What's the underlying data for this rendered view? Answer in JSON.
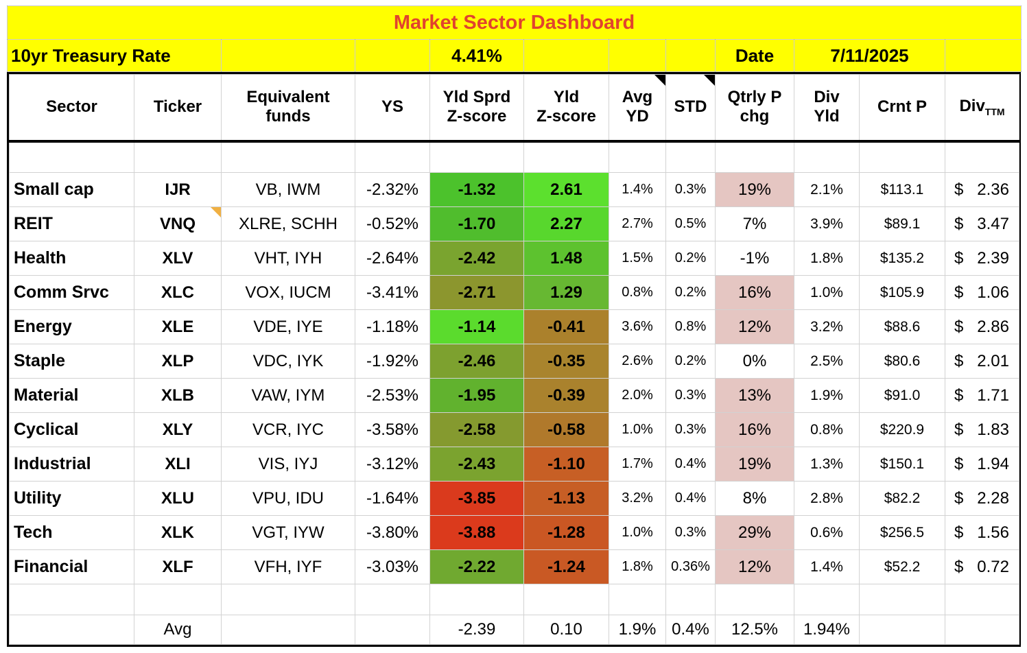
{
  "title": "Market Sector Dashboard",
  "topbar": {
    "treasury_label": "10yr Treasury Rate",
    "treasury_rate": "4.41%",
    "date_label": "Date",
    "date_value": "7/11/2025"
  },
  "header": {
    "sector": "Sector",
    "ticker": "Ticker",
    "funds": "Equivalent\nfunds",
    "ys": "YS",
    "yld_sprd_z": "Yld Sprd\nZ-score",
    "yld_z": "Yld\nZ-score",
    "avg_yd": "Avg\nYD",
    "std": "STD",
    "qtrly": "Qtrly P\nchg",
    "div_yld": "Div\nYld",
    "crnt_p": "Crnt P",
    "div_ttm_main": "Div",
    "div_ttm_sub": "TTM"
  },
  "div_ttm_sign": "$",
  "colors": {
    "band_yellow": "#ffff00",
    "title_text": "#e1432e",
    "pink": "#e5c6c2",
    "note_orange": "#f0b042",
    "grid_line": "#d2d2d2",
    "border_black": "#000000"
  },
  "rows": [
    {
      "sector": "Small cap",
      "ticker": "IJR",
      "funds": "VB, IWM",
      "ys": "-2.32%",
      "ys_z": "-1.32",
      "ys_z_color": "#4cc22c",
      "yld_z": "2.61",
      "yld_z_color": "#5ce02e",
      "avg_yd": "1.4%",
      "std": "0.3%",
      "qtrly": "19%",
      "qtrly_pink": true,
      "div_yld": "2.1%",
      "crnt_p": "$113.1",
      "div_ttm": "2.36",
      "note": false
    },
    {
      "sector": "REIT",
      "ticker": "VNQ",
      "funds": "XLRE, SCHH",
      "ys": "-0.52%",
      "ys_z": "-1.70",
      "ys_z_color": "#50bd2d",
      "yld_z": "2.27",
      "yld_z_color": "#58d72d",
      "avg_yd": "2.7%",
      "std": "0.5%",
      "qtrly": "7%",
      "qtrly_pink": false,
      "div_yld": "3.9%",
      "crnt_p": "$89.1",
      "div_ttm": "3.47",
      "note": true
    },
    {
      "sector": "Health",
      "ticker": "XLV",
      "funds": "VHT, IYH",
      "ys": "-2.64%",
      "ys_z": "-2.42",
      "ys_z_color": "#7aa42f",
      "yld_z": "1.48",
      "yld_z_color": "#5dc22f",
      "avg_yd": "1.5%",
      "std": "0.2%",
      "qtrly": "-1%",
      "qtrly_pink": false,
      "div_yld": "1.8%",
      "crnt_p": "$135.2",
      "div_ttm": "2.39",
      "note": false
    },
    {
      "sector": "Comm Srvc",
      "ticker": "XLC",
      "funds": "VOX, IUCM",
      "ys": "-3.41%",
      "ys_z": "-2.71",
      "ys_z_color": "#8c962e",
      "yld_z": "1.29",
      "yld_z_color": "#67b832",
      "avg_yd": "0.8%",
      "std": "0.2%",
      "qtrly": "16%",
      "qtrly_pink": true,
      "div_yld": "1.0%",
      "crnt_p": "$105.9",
      "div_ttm": "1.06",
      "note": false
    },
    {
      "sector": "Energy",
      "ticker": "XLE",
      "funds": "VDE, IYE",
      "ys": "-1.18%",
      "ys_z": "-1.14",
      "ys_z_color": "#5bdb2d",
      "yld_z": "-0.41",
      "yld_z_color": "#ab812c",
      "avg_yd": "3.6%",
      "std": "0.8%",
      "qtrly": "12%",
      "qtrly_pink": true,
      "div_yld": "3.2%",
      "crnt_p": "$88.6",
      "div_ttm": "2.86",
      "note": false
    },
    {
      "sector": "Staple",
      "ticker": "XLP",
      "funds": "VDC, IYK",
      "ys": "-1.92%",
      "ys_z": "-2.46",
      "ys_z_color": "#7da12f",
      "yld_z": "-0.35",
      "yld_z_color": "#a9842d",
      "avg_yd": "2.6%",
      "std": "0.2%",
      "qtrly": "0%",
      "qtrly_pink": false,
      "div_yld": "2.5%",
      "crnt_p": "$80.6",
      "div_ttm": "2.01",
      "note": false
    },
    {
      "sector": "Material",
      "ticker": "XLB",
      "funds": "VAW, IYM",
      "ys": "-2.53%",
      "ys_z": "-1.95",
      "ys_z_color": "#61b22e",
      "yld_z": "-0.39",
      "yld_z_color": "#aa822d",
      "avg_yd": "2.0%",
      "std": "0.3%",
      "qtrly": "13%",
      "qtrly_pink": true,
      "div_yld": "1.9%",
      "crnt_p": "$91.0",
      "div_ttm": "1.71",
      "note": false
    },
    {
      "sector": "Cyclical",
      "ticker": "XLY",
      "funds": "VCR, IYC",
      "ys": "-3.58%",
      "ys_z": "-2.58",
      "ys_z_color": "#859a2f",
      "yld_z": "-0.58",
      "yld_z_color": "#b0792b",
      "avg_yd": "1.0%",
      "std": "0.3%",
      "qtrly": "16%",
      "qtrly_pink": true,
      "div_yld": "0.8%",
      "crnt_p": "$220.9",
      "div_ttm": "1.83",
      "note": false
    },
    {
      "sector": "Industrial",
      "ticker": "XLI",
      "funds": "VIS, IYJ",
      "ys": "-3.12%",
      "ys_z": "-2.43",
      "ys_z_color": "#7ba32f",
      "yld_z": "-1.10",
      "yld_z_color": "#c75f25",
      "avg_yd": "1.7%",
      "std": "0.4%",
      "qtrly": "19%",
      "qtrly_pink": true,
      "div_yld": "1.3%",
      "crnt_p": "$150.1",
      "div_ttm": "1.94",
      "note": false
    },
    {
      "sector": "Utility",
      "ticker": "XLU",
      "funds": "VPU, IDU",
      "ys": "-1.64%",
      "ys_z": "-3.85",
      "ys_z_color": "#da3a1d",
      "yld_z": "-1.13",
      "yld_z_color": "#c75e25",
      "avg_yd": "3.2%",
      "std": "0.4%",
      "qtrly": "8%",
      "qtrly_pink": false,
      "div_yld": "2.8%",
      "crnt_p": "$82.2",
      "div_ttm": "2.28",
      "note": false
    },
    {
      "sector": "Tech",
      "ticker": "XLK",
      "funds": "VGT, IYW",
      "ys": "-3.80%",
      "ys_z": "-3.88",
      "ys_z_color": "#db3a1c",
      "yld_z": "-1.28",
      "yld_z_color": "#ca5723",
      "avg_yd": "1.0%",
      "std": "0.3%",
      "qtrly": "29%",
      "qtrly_pink": true,
      "div_yld": "0.6%",
      "crnt_p": "$256.5",
      "div_ttm": "1.56",
      "note": false
    },
    {
      "sector": "Financial",
      "ticker": "XLF",
      "funds": "VFH, IYF",
      "ys": "-3.03%",
      "ys_z": "-2.22",
      "ys_z_color": "#70a930",
      "yld_z": "-1.24",
      "yld_z_color": "#c95924",
      "avg_yd": "1.8%",
      "std": "0.36%",
      "qtrly": "12%",
      "qtrly_pink": true,
      "div_yld": "1.4%",
      "crnt_p": "$52.2",
      "div_ttm": "0.72",
      "note": false
    }
  ],
  "avg_row": {
    "label": "Avg",
    "yld_sprd_z": "-2.39",
    "yld_z": "0.10",
    "avg_yd": "1.9%",
    "std": "0.4%",
    "qtrly": "12.5%",
    "div_yld": "1.94%"
  }
}
